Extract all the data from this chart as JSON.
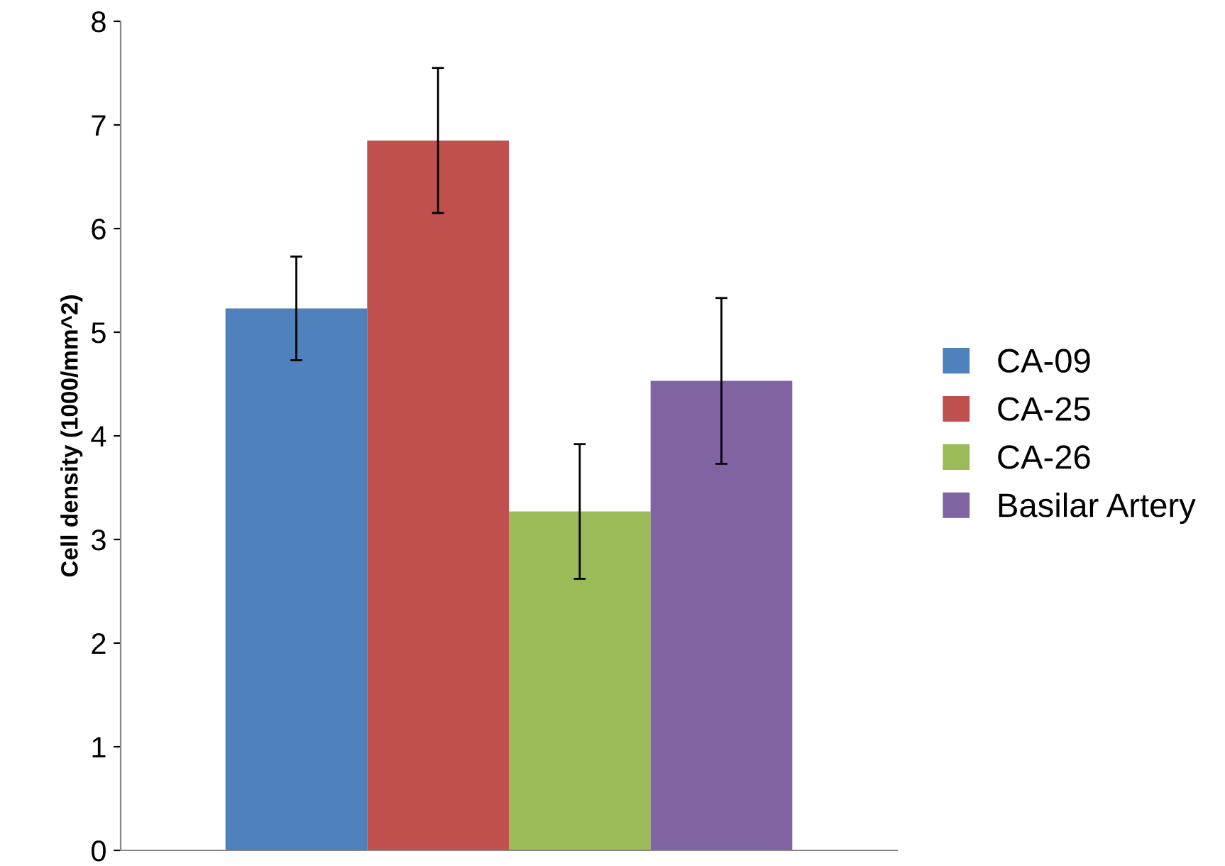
{
  "chart_data": {
    "type": "bar",
    "ylabel": "Cell density (1000/mm^2)",
    "categories": [
      null
    ],
    "series": [
      {
        "name": "CA-09",
        "color": "#4f81bd",
        "values": [
          5.23
        ],
        "errors": [
          0.5
        ]
      },
      {
        "name": "CA-25",
        "color": "#c0504d",
        "values": [
          6.85
        ],
        "errors": [
          0.7
        ]
      },
      {
        "name": "CA-26",
        "color": "#9bbb59",
        "values": [
          3.27
        ],
        "errors": [
          0.65
        ]
      },
      {
        "name": "Basilar Artery",
        "color": "#8064a2",
        "values": [
          4.53
        ],
        "errors": [
          0.8
        ]
      }
    ],
    "ylim": [
      0,
      8
    ],
    "yticks": [
      0,
      1,
      2,
      3,
      4,
      5,
      6,
      7,
      8
    ],
    "grid": false,
    "legend": "right"
  }
}
